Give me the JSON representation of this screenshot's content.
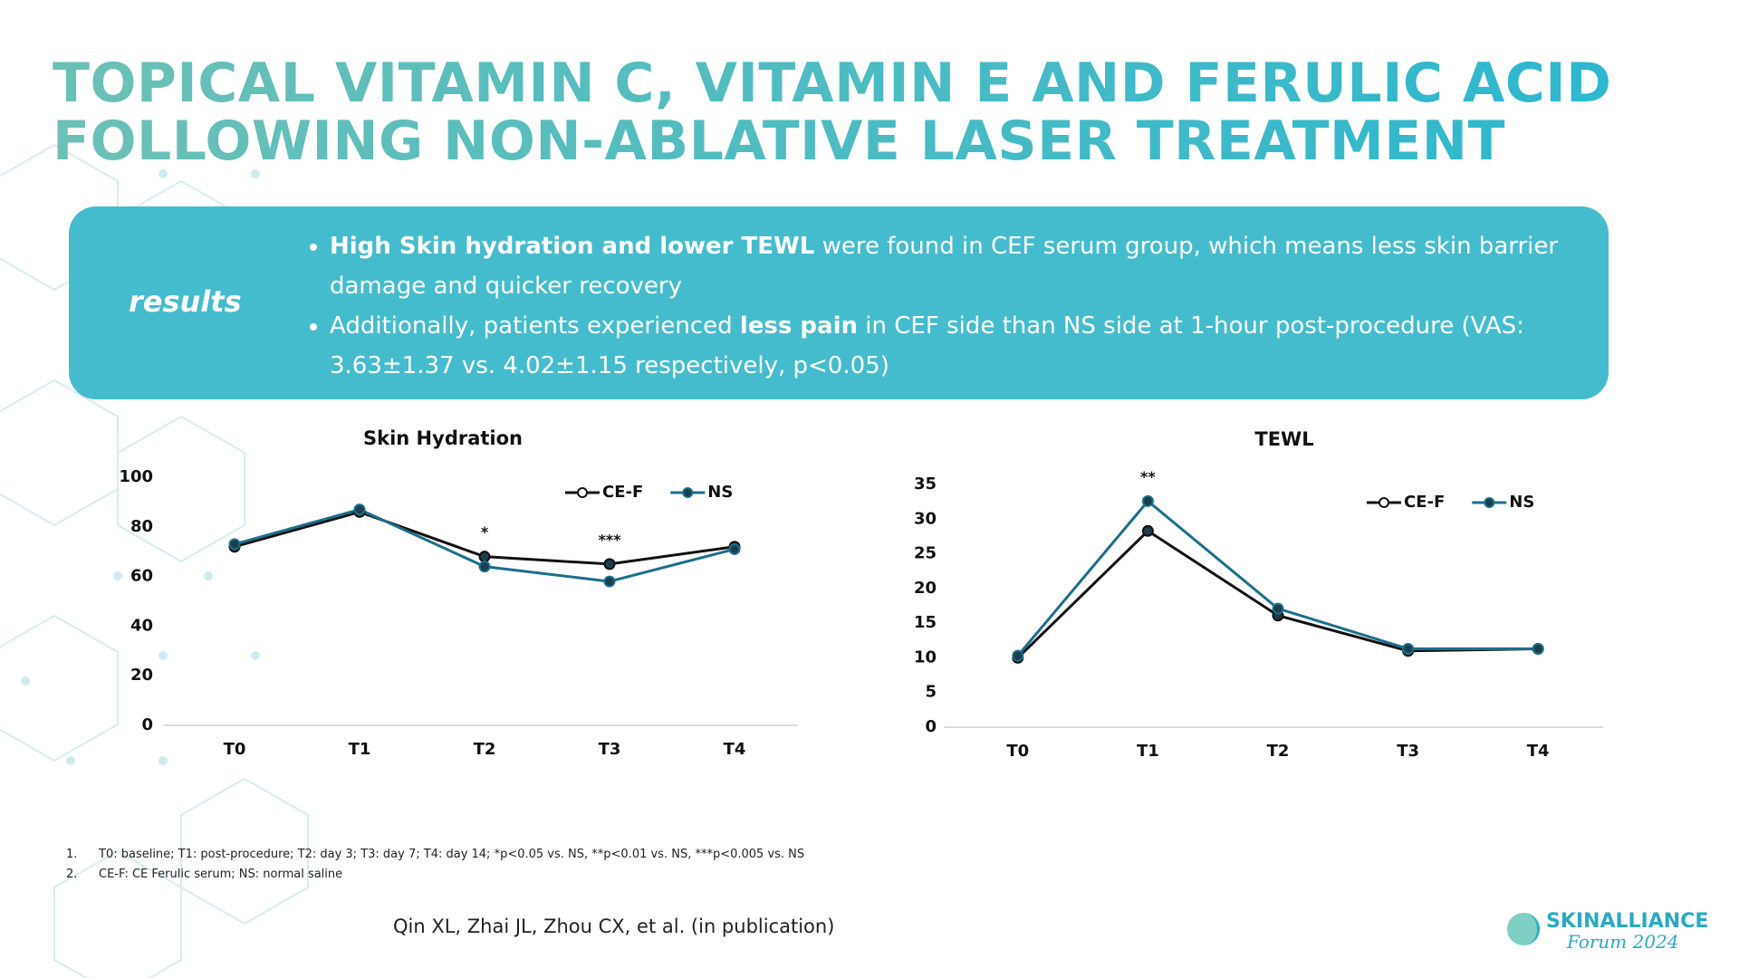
{
  "title": [
    "TOPICAL VITAMIN C, VITAMIN E AND FERULIC ACID",
    "FOLLOWING NON-ABLATIVE LASER TREATMENT"
  ],
  "results_box": {
    "label": "results",
    "bullets": [
      [
        {
          "text": "High Skin hydration and lower TEWL",
          "bold": true
        },
        {
          "text": " were found in CEF serum group, which means less skin barrier damage and quicker recovery",
          "bold": false
        }
      ],
      [
        {
          "text": "Additionally, patients experienced ",
          "bold": false
        },
        {
          "text": "less pain",
          "bold": true
        },
        {
          "text": " in CEF side than NS side at 1-hour post-procedure (VAS: 3.63±1.37 vs. 4.02±1.15 respectively, p<0.05)",
          "bold": false
        }
      ]
    ]
  },
  "chart_data": [
    {
      "type": "line",
      "title": "Skin Hydration",
      "categories": [
        "T0",
        "T1",
        "T2",
        "T3",
        "T4"
      ],
      "series": [
        {
          "name": "CE-F",
          "color": "#111111",
          "values": [
            72,
            86,
            68,
            65,
            72
          ]
        },
        {
          "name": "NS",
          "color": "#1b6f8c",
          "values": [
            73,
            87,
            64,
            58,
            71
          ]
        }
      ],
      "annotations": [
        null,
        null,
        "*",
        "***",
        null
      ],
      "ylim": [
        0,
        100
      ],
      "yticks": [
        0,
        20,
        40,
        60,
        80,
        100
      ],
      "grid": false,
      "legend": "top-right"
    },
    {
      "type": "line",
      "title": "TEWL",
      "categories": [
        "T0",
        "T1",
        "T2",
        "T3",
        "T4"
      ],
      "series": [
        {
          "name": "CE-F",
          "color": "#111111",
          "values": [
            10,
            28.3,
            16.1,
            11,
            11.3
          ]
        },
        {
          "name": "NS",
          "color": "#1b6f8c",
          "values": [
            10.3,
            32.6,
            17.1,
            11.3,
            11.3
          ]
        }
      ],
      "annotations": [
        null,
        "**",
        null,
        null,
        null
      ],
      "ylim": [
        0,
        35
      ],
      "yticks": [
        0,
        5,
        10,
        15,
        20,
        25,
        30,
        35
      ],
      "grid": false,
      "legend": "top-right"
    }
  ],
  "footnotes": [
    {
      "number": "1.",
      "text": "T0: baseline; T1: post-procedure; T2: day 3; T3: day 7; T4: day 14; *p<0.05 vs. NS,  **p<0.01 vs. NS, ***p<0.005 vs. NS"
    },
    {
      "number": "2.",
      "text": "CE-F: CE Ferulic serum; NS: normal saline"
    }
  ],
  "citation": "Qin XL, Zhai JL, Zhou CX, et al. (in publication)",
  "logo": {
    "name": "SKINALLIANCE",
    "subtitle": "Forum 2024"
  }
}
